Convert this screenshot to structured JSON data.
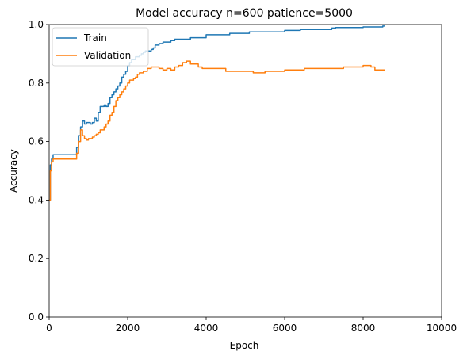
{
  "chart_data": {
    "type": "line",
    "title": "Model accuracy n=600 patience=5000",
    "xlabel": "Epoch",
    "ylabel": "Accuracy",
    "xlim": [
      0,
      10000
    ],
    "ylim": [
      0.0,
      1.0
    ],
    "xticks": [
      0,
      2000,
      4000,
      6000,
      8000,
      10000
    ],
    "xtick_labels": [
      "0",
      "2000",
      "4000",
      "6000",
      "8000",
      "10000"
    ],
    "yticks": [
      0.0,
      0.2,
      0.4,
      0.6,
      0.8,
      1.0
    ],
    "ytick_labels": [
      "0.0",
      "0.2",
      "0.4",
      "0.6",
      "0.8",
      "1.0"
    ],
    "grid": false,
    "legend_position": "top-left",
    "series": [
      {
        "name": "Train",
        "color": "#1f77b4",
        "x": [
          0,
          30,
          60,
          100,
          150,
          650,
          700,
          750,
          800,
          850,
          900,
          950,
          1000,
          1050,
          1100,
          1150,
          1200,
          1250,
          1300,
          1350,
          1400,
          1450,
          1500,
          1550,
          1600,
          1650,
          1700,
          1750,
          1800,
          1850,
          1900,
          1950,
          2000,
          2050,
          2100,
          2150,
          2200,
          2250,
          2300,
          2350,
          2400,
          2450,
          2500,
          2550,
          2600,
          2650,
          2700,
          2800,
          2900,
          3000,
          3100,
          3200,
          3300,
          3600,
          3900,
          4000,
          4500,
          4600,
          5000,
          5100,
          5200,
          5300,
          6000,
          6300,
          6400,
          7000,
          7200,
          7300,
          8000,
          8500,
          8560
        ],
        "y": [
          0.4,
          0.52,
          0.54,
          0.555,
          0.555,
          0.555,
          0.58,
          0.62,
          0.65,
          0.67,
          0.66,
          0.665,
          0.665,
          0.66,
          0.665,
          0.68,
          0.67,
          0.7,
          0.72,
          0.72,
          0.725,
          0.72,
          0.73,
          0.75,
          0.76,
          0.77,
          0.78,
          0.79,
          0.8,
          0.82,
          0.83,
          0.84,
          0.86,
          0.87,
          0.88,
          0.88,
          0.89,
          0.89,
          0.895,
          0.9,
          0.905,
          0.91,
          0.91,
          0.91,
          0.915,
          0.92,
          0.93,
          0.935,
          0.94,
          0.94,
          0.945,
          0.95,
          0.95,
          0.955,
          0.955,
          0.965,
          0.965,
          0.97,
          0.97,
          0.975,
          0.975,
          0.975,
          0.98,
          0.98,
          0.983,
          0.983,
          0.988,
          0.99,
          0.992,
          0.995,
          0.995
        ]
      },
      {
        "name": "Validation",
        "color": "#ff7f0e",
        "x": [
          0,
          30,
          60,
          100,
          150,
          650,
          700,
          750,
          800,
          850,
          900,
          950,
          1000,
          1050,
          1100,
          1150,
          1200,
          1250,
          1300,
          1350,
          1400,
          1450,
          1500,
          1550,
          1600,
          1650,
          1700,
          1750,
          1800,
          1850,
          1900,
          1950,
          2000,
          2050,
          2100,
          2150,
          2200,
          2250,
          2300,
          2400,
          2500,
          2600,
          2700,
          2800,
          2900,
          3000,
          3100,
          3200,
          3300,
          3400,
          3500,
          3600,
          3700,
          3800,
          3900,
          4000,
          4500,
          5000,
          5200,
          5500,
          6000,
          6500,
          7000,
          7500,
          8000,
          8200,
          8300,
          8560
        ],
        "y": [
          0.4,
          0.5,
          0.53,
          0.54,
          0.54,
          0.54,
          0.56,
          0.6,
          0.64,
          0.62,
          0.61,
          0.605,
          0.61,
          0.61,
          0.615,
          0.62,
          0.625,
          0.63,
          0.64,
          0.64,
          0.65,
          0.66,
          0.67,
          0.69,
          0.7,
          0.72,
          0.74,
          0.75,
          0.76,
          0.77,
          0.78,
          0.79,
          0.8,
          0.81,
          0.81,
          0.815,
          0.82,
          0.83,
          0.835,
          0.84,
          0.85,
          0.855,
          0.855,
          0.85,
          0.845,
          0.85,
          0.845,
          0.855,
          0.86,
          0.87,
          0.875,
          0.865,
          0.865,
          0.855,
          0.85,
          0.85,
          0.84,
          0.84,
          0.835,
          0.84,
          0.845,
          0.85,
          0.85,
          0.855,
          0.86,
          0.855,
          0.845,
          0.845
        ]
      }
    ]
  }
}
